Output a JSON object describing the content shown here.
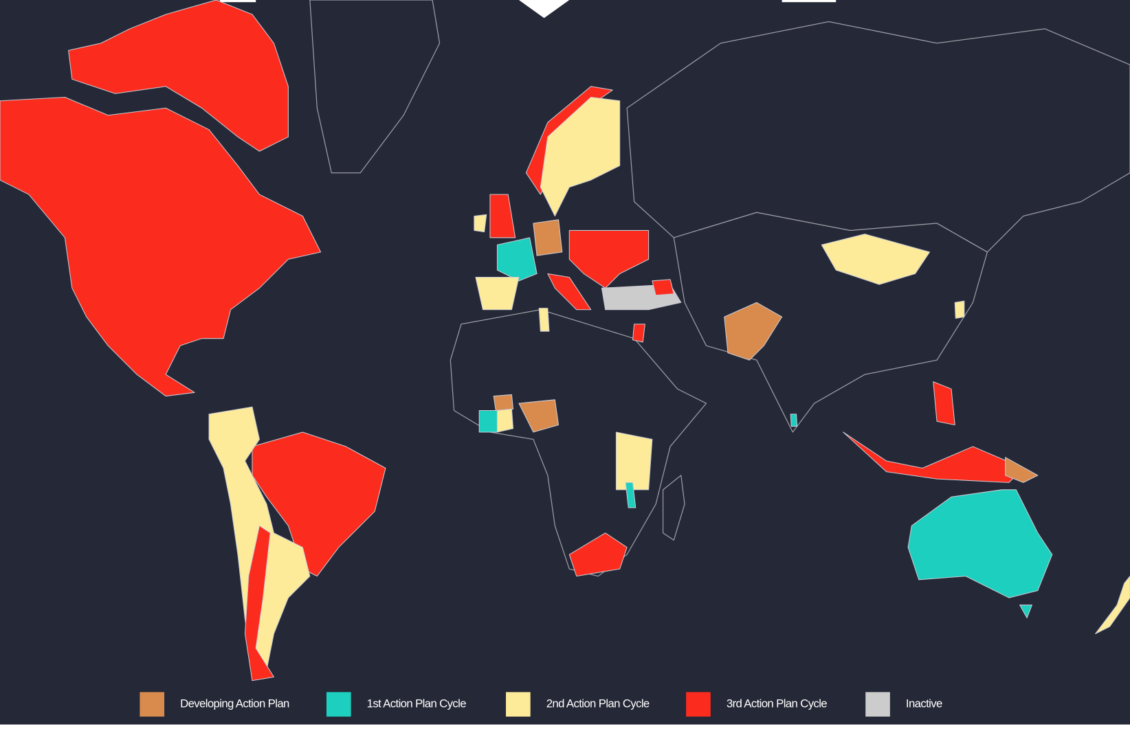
{
  "legend": [
    {
      "label": "Developing Action Plan",
      "color": "#d98b4e"
    },
    {
      "label": "1st Action Plan Cycle",
      "color": "#1ccfbf"
    },
    {
      "label": "2nd Action Plan Cycle",
      "color": "#fdeb9a"
    },
    {
      "label": "3rd Action Plan Cycle",
      "color": "#fb2b1e"
    },
    {
      "label": "Inactive",
      "color": "#cccccc"
    }
  ]
}
